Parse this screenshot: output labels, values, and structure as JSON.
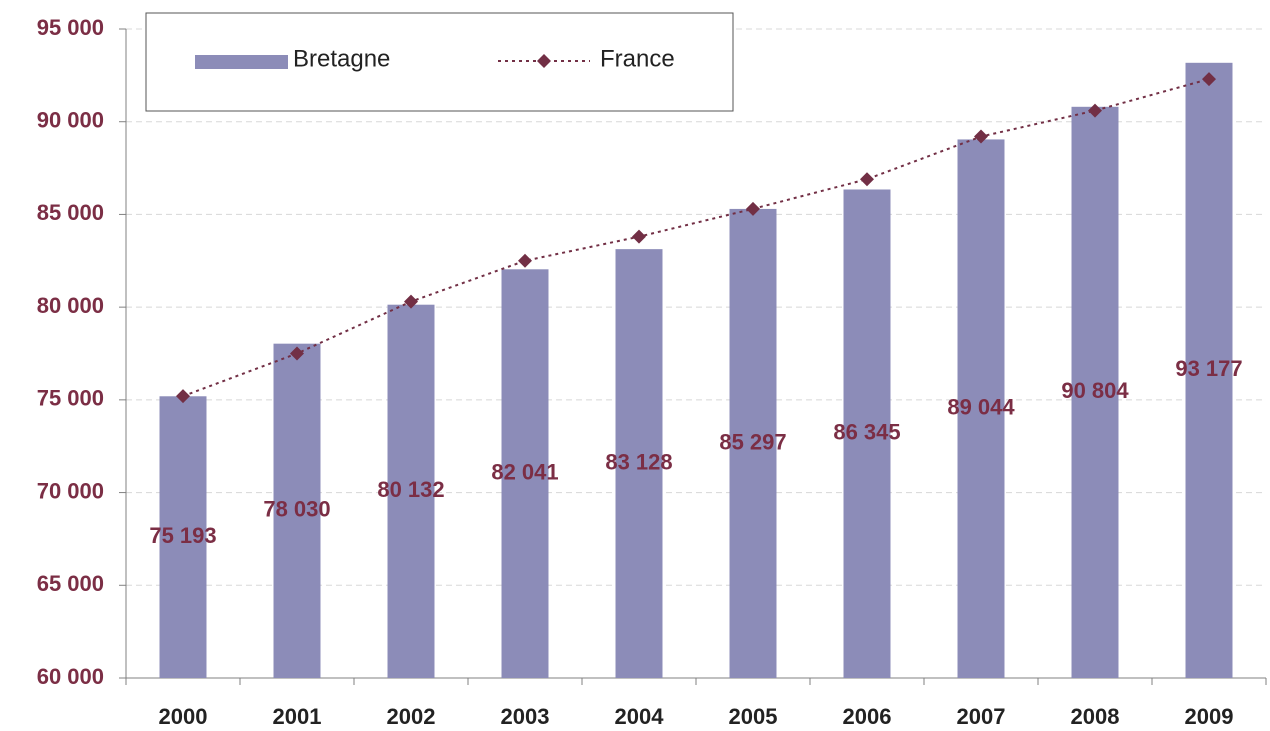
{
  "chart_data": {
    "type": "bar",
    "categories": [
      "2000",
      "2001",
      "2002",
      "2003",
      "2004",
      "2005",
      "2006",
      "2007",
      "2008",
      "2009"
    ],
    "series": [
      {
        "name": "Bretagne",
        "type": "bar",
        "color": "#8c8cb8",
        "values": [
          75193,
          78030,
          80132,
          82041,
          83128,
          85297,
          86345,
          89044,
          90804,
          93177
        ],
        "value_labels": [
          "75 193",
          "78 030",
          "80 132",
          "82 041",
          "83 128",
          "85 297",
          "86 345",
          "89 044",
          "90 804",
          "93 177"
        ]
      },
      {
        "name": "France",
        "type": "line",
        "color": "#722f45",
        "values": [
          75200,
          77500,
          80300,
          82500,
          83800,
          85300,
          86900,
          89200,
          90600,
          92300
        ]
      }
    ],
    "ylim": [
      60000,
      95000
    ],
    "yticks": [
      {
        "value": 60000,
        "label": "60 000"
      },
      {
        "value": 65000,
        "label": "65 000"
      },
      {
        "value": 70000,
        "label": "70 000"
      },
      {
        "value": 75000,
        "label": "75 000"
      },
      {
        "value": 80000,
        "label": "80 000"
      },
      {
        "value": 85000,
        "label": "85 000"
      },
      {
        "value": 90000,
        "label": "90 000"
      },
      {
        "value": 95000,
        "label": "95 000"
      }
    ],
    "grid": true,
    "legend": "top-left"
  }
}
